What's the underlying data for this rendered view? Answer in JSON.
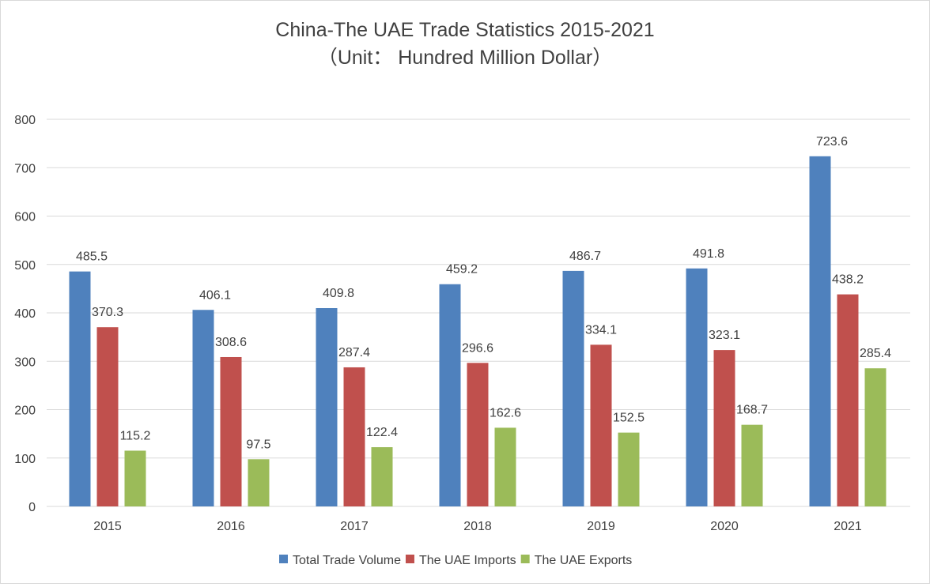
{
  "chart_data": {
    "type": "bar",
    "title": "China-The UAE Trade Statistics 2015-2021",
    "subtitle": "（Unit： Hundred Million Dollar）",
    "xlabel": "",
    "ylabel": "",
    "categories": [
      "2015",
      "2016",
      "2017",
      "2018",
      "2019",
      "2020",
      "2021"
    ],
    "series": [
      {
        "name": "Total Trade Volume",
        "color": "#4f81bd",
        "values": [
          485.5,
          406.1,
          409.8,
          459.2,
          486.7,
          491.8,
          723.6
        ]
      },
      {
        "name": "The UAE Imports",
        "color": "#c0504d",
        "values": [
          370.3,
          308.6,
          287.4,
          296.6,
          334.1,
          323.1,
          438.2
        ]
      },
      {
        "name": "The UAE Exports",
        "color": "#9bbb59",
        "values": [
          115.2,
          97.5,
          122.4,
          162.6,
          152.5,
          168.7,
          285.4
        ]
      }
    ],
    "ylim": [
      0,
      800
    ],
    "yticks": [
      0,
      100,
      200,
      300,
      400,
      500,
      600,
      700,
      800
    ],
    "grid": true,
    "data_labels": true,
    "legend": "bottom"
  }
}
